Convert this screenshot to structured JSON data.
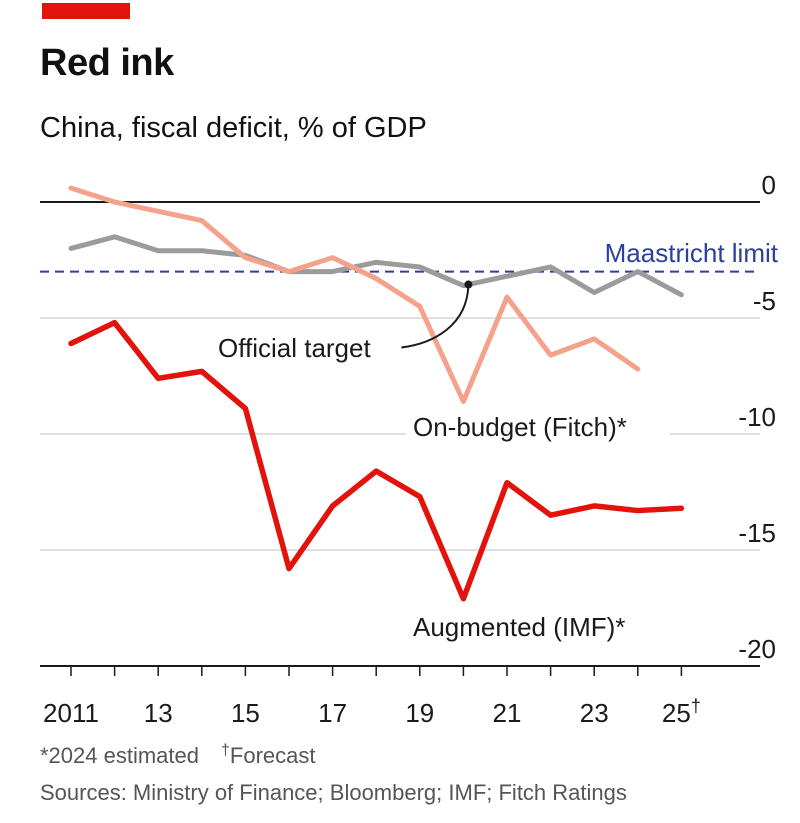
{
  "header": {
    "title": "Red ink",
    "subtitle": "China, fiscal deficit, % of GDP"
  },
  "colors": {
    "accent": "#e3120b",
    "augmented": "#e3120b",
    "on_budget": "#f4a28c",
    "official": "#9b9b9b",
    "maastricht": "#2a3f9e"
  },
  "chart_data": {
    "type": "line",
    "x": [
      2011,
      2012,
      2013,
      2014,
      2015,
      2016,
      2017,
      2018,
      2019,
      2020,
      2021,
      2022,
      2023,
      2024,
      2025
    ],
    "x_tick_values": [
      2011,
      2013,
      2015,
      2017,
      2019,
      2021,
      2023,
      2025
    ],
    "x_tick_labels": [
      "2011",
      "13",
      "15",
      "17",
      "19",
      "21",
      "23",
      "25"
    ],
    "x_tick_suffixes": [
      "",
      "",
      "",
      "",
      "",
      "",
      "",
      "†"
    ],
    "y_ticks": [
      0,
      -5,
      -10,
      -15,
      -20
    ],
    "y_tick_labels": [
      "0",
      "-5",
      "-10",
      "-15",
      "-20"
    ],
    "ylim": [
      -20,
      0
    ],
    "grid": true,
    "series": [
      {
        "name": "Official target",
        "color_key": "official",
        "x": [
          2011,
          2012,
          2013,
          2014,
          2015,
          2016,
          2017,
          2018,
          2019,
          2020,
          2021,
          2022,
          2023,
          2024,
          2025
        ],
        "values": [
          -2.0,
          -1.5,
          -2.1,
          -2.1,
          -2.3,
          -3.0,
          -3.0,
          -2.6,
          -2.8,
          -3.6,
          -3.2,
          -2.8,
          -3.9,
          -3.0,
          -4.0
        ]
      },
      {
        "name": "On-budget (Fitch)*",
        "color_key": "on_budget",
        "x": [
          2011,
          2012,
          2013,
          2014,
          2015,
          2016,
          2017,
          2018,
          2019,
          2020,
          2021,
          2022,
          2023,
          2024
        ],
        "values": [
          0.6,
          0.0,
          -0.4,
          -0.8,
          -2.4,
          -3.0,
          -2.4,
          -3.3,
          -4.5,
          -8.6,
          -4.1,
          -6.6,
          -5.9,
          -7.2
        ]
      },
      {
        "name": "Augmented (IMF)*",
        "color_key": "augmented",
        "x": [
          2011,
          2012,
          2013,
          2014,
          2015,
          2016,
          2017,
          2018,
          2019,
          2020,
          2021,
          2022,
          2023,
          2024,
          2025
        ],
        "values": [
          -6.1,
          -5.2,
          -7.6,
          -7.3,
          -8.9,
          -15.8,
          -13.1,
          -11.6,
          -12.7,
          -17.1,
          -12.1,
          -13.5,
          -13.1,
          -13.3,
          -13.2
        ]
      }
    ],
    "reference_line": {
      "label": "Maastricht limit",
      "value": -3
    },
    "annotations": {
      "official_target": "Official target",
      "on_budget": "On-budget (Fitch)*",
      "augmented": "Augmented (IMF)*"
    }
  },
  "footer": {
    "note_estimated": "*2024 estimated",
    "note_forecast_mark": "†",
    "note_forecast": "Forecast",
    "sources": "Sources: Ministry of Finance; Bloomberg; IMF; Fitch Ratings"
  }
}
